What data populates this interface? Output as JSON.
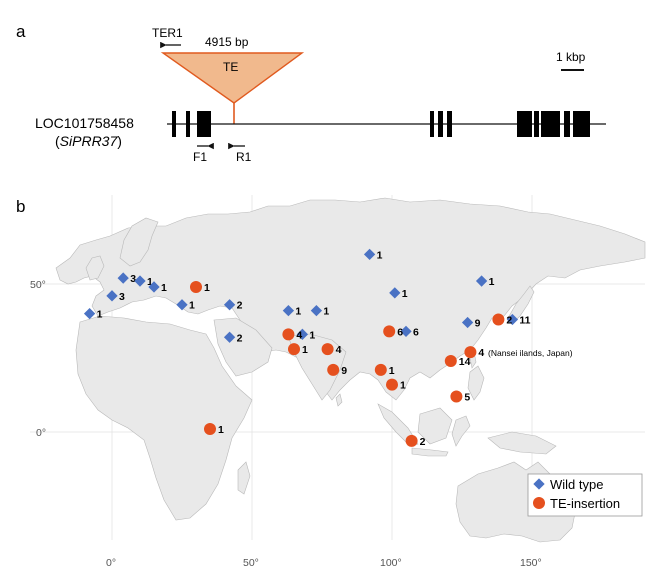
{
  "panel_a": {
    "label": "a",
    "te_name": "TE",
    "te_size": "4915 bp",
    "primer_ter1": "TER1",
    "primer_f1": "F1",
    "primer_r1": "R1",
    "scale_label": "1 kbp",
    "gene_id": "LOC101758458",
    "gene_name_open": "(",
    "gene_name": "SiPRR37",
    "gene_name_close": ")",
    "colors": {
      "te_fill": "#f1b98d",
      "te_stroke": "#e05a1f",
      "exon": "#000000"
    }
  },
  "panel_b": {
    "label": "b",
    "lat_ticks": [
      "50°",
      "0°"
    ],
    "lon_ticks": [
      "0°",
      "50°",
      "100°",
      "150°"
    ],
    "legend": {
      "wild_type": "Wild type",
      "te_insertion": "TE-insertion"
    },
    "note_nansei": "(Nansei ilands, Japan)",
    "colors": {
      "wild_type": "#4a72c4",
      "te_insertion": "#e5501e",
      "land": "#e9e9e9"
    },
    "wild_type_points": [
      {
        "lon": -8,
        "lat": 40,
        "count": "1"
      },
      {
        "lon": 0,
        "lat": 46,
        "count": "3"
      },
      {
        "lon": 4,
        "lat": 52,
        "count": "3"
      },
      {
        "lon": 10,
        "lat": 51,
        "count": "1"
      },
      {
        "lon": 15,
        "lat": 49,
        "count": "1"
      },
      {
        "lon": 25,
        "lat": 43,
        "count": "1"
      },
      {
        "lon": 42,
        "lat": 43,
        "count": "2"
      },
      {
        "lon": 42,
        "lat": 32,
        "count": "2"
      },
      {
        "lon": 63,
        "lat": 41,
        "count": "1"
      },
      {
        "lon": 73,
        "lat": 41,
        "count": "1"
      },
      {
        "lon": 68,
        "lat": 33,
        "count": "1"
      },
      {
        "lon": 92,
        "lat": 60,
        "count": "1"
      },
      {
        "lon": 101,
        "lat": 47,
        "count": "1"
      },
      {
        "lon": 105,
        "lat": 34,
        "count": "6"
      },
      {
        "lon": 127,
        "lat": 37,
        "count": "9"
      },
      {
        "lon": 143,
        "lat": 38,
        "count": "11"
      },
      {
        "lon": 132,
        "lat": 51,
        "count": "1"
      }
    ],
    "te_points": [
      {
        "lon": 30,
        "lat": 49,
        "count": "1"
      },
      {
        "lon": 63,
        "lat": 33,
        "count": "4"
      },
      {
        "lon": 65,
        "lat": 28,
        "count": "1"
      },
      {
        "lon": 77,
        "lat": 28,
        "count": "4"
      },
      {
        "lon": 79,
        "lat": 21,
        "count": "9"
      },
      {
        "lon": 96,
        "lat": 21,
        "count": "1"
      },
      {
        "lon": 100,
        "lat": 16,
        "count": "1"
      },
      {
        "lon": 99,
        "lat": 34,
        "count": "6"
      },
      {
        "lon": 138,
        "lat": 38,
        "count": "2"
      },
      {
        "lon": 128,
        "lat": 27,
        "count": "4"
      },
      {
        "lon": 121,
        "lat": 24,
        "count": "14"
      },
      {
        "lon": 123,
        "lat": 12,
        "count": "5"
      },
      {
        "lon": 35,
        "lat": 1,
        "count": "1"
      },
      {
        "lon": 107,
        "lat": -3,
        "count": "2"
      }
    ]
  }
}
